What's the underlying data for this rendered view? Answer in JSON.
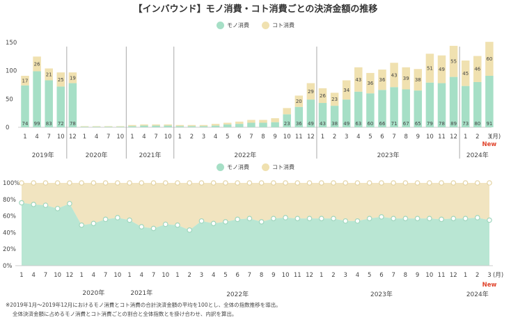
{
  "title": "【インバウンド】モノ消費・コト消費ごとの決済金額の推移",
  "colors": {
    "mono": "#a6dfc6",
    "koto": "#f0e1b0",
    "mono_area": "#b9e6d3",
    "koto_area": "#f1e4c0",
    "axis": "#999999",
    "new": "#e0442c"
  },
  "legend": {
    "mono": "モノ消費",
    "koto": "コト消費"
  },
  "month_unit": "(月)",
  "new_label": "New",
  "note": {
    "line1": "※2019年1月～2019年12月におけるモノ消費とコト消費の合計決済金額の平均を100とし、全体の指数推移を導出。",
    "line2": "全体決済金額に占めるモノ消費とコト消費ごとの割合と全体指数とを掛け合わせ、内訳を算出。"
  },
  "chart_data": [
    {
      "type": "bar",
      "stacked": true,
      "title": "",
      "ylim": [
        0,
        150
      ],
      "yticks": [
        "0",
        "50",
        "100",
        "150"
      ],
      "categories": [
        "1",
        "4",
        "7",
        "10",
        "12",
        "1",
        "4",
        "7",
        "10",
        "1",
        "4",
        "7",
        "10",
        "1",
        "2",
        "3",
        "4",
        "5",
        "6",
        "7",
        "8",
        "9",
        "10",
        "11",
        "12",
        "1",
        "2",
        "3",
        "4",
        "5",
        "6",
        "7",
        "8",
        "9",
        "10",
        "11",
        "12",
        "1",
        "2",
        "3"
      ],
      "year_groups": [
        {
          "label": "2019年",
          "start": 0,
          "end": 3
        },
        {
          "label": "2020年",
          "start": 4,
          "end": 8
        },
        {
          "label": "2021年",
          "start": 9,
          "end": 12
        },
        {
          "label": "2022年",
          "start": 13,
          "end": 24
        },
        {
          "label": "2023年",
          "start": 25,
          "end": 36
        },
        {
          "label": "2024年",
          "start": 37,
          "end": 39
        }
      ],
      "separators_after": [
        3,
        8,
        12,
        24,
        36
      ],
      "series": [
        {
          "name": "モノ消費",
          "values": [
            74,
            99,
            83,
            72,
            78,
            1,
            1,
            1,
            1,
            2,
            3,
            3,
            3,
            2,
            2,
            2,
            3,
            5,
            6,
            8,
            8,
            9,
            23,
            36,
            49,
            43,
            38,
            49,
            63,
            60,
            66,
            71,
            67,
            65,
            79,
            78,
            89,
            73,
            80,
            91
          ],
          "labels": [
            "74",
            "99",
            "83",
            "72",
            "78",
            "",
            "",
            "",
            "",
            "",
            "",
            "",
            "",
            "",
            "",
            "",
            "",
            "",
            "",
            "",
            "",
            "",
            "23",
            "36",
            "49",
            "43",
            "38",
            "49",
            "63",
            "60",
            "66",
            "71",
            "67",
            "65",
            "79",
            "78",
            "89",
            "73",
            "80",
            "91"
          ]
        },
        {
          "name": "コト消費",
          "values": [
            17,
            26,
            21,
            25,
            19,
            1,
            1,
            1,
            1,
            2,
            2,
            2,
            2,
            2,
            2,
            2,
            3,
            3,
            4,
            5,
            5,
            7,
            11,
            20,
            29,
            26,
            23,
            34,
            43,
            36,
            36,
            43,
            39,
            38,
            51,
            49,
            55,
            45,
            46,
            60
          ],
          "labels": [
            "17",
            "26",
            "21",
            "25",
            "19",
            "",
            "",
            "",
            "",
            "",
            "",
            "",
            "",
            "",
            "",
            "",
            "",
            "",
            "",
            "",
            "",
            "",
            "",
            "20",
            "29",
            "26",
            "23",
            "34",
            "43",
            "36",
            "36",
            "43",
            "39",
            "38",
            "51",
            "49",
            "55",
            "45",
            "46",
            "60"
          ]
        }
      ]
    },
    {
      "type": "area",
      "stacked": true,
      "ylim": [
        0,
        100
      ],
      "yticks": [
        "0%",
        "20%",
        "40%",
        "60%",
        "80%",
        "100%"
      ],
      "categories": [
        "1",
        "4",
        "7",
        "10",
        "12",
        "1",
        "4",
        "7",
        "10",
        "1",
        "4",
        "7",
        "10",
        "1",
        "2",
        "3",
        "4",
        "5",
        "6",
        "7",
        "8",
        "9",
        "10",
        "11",
        "12",
        "1",
        "2",
        "3",
        "4",
        "5",
        "6",
        "7",
        "8",
        "9",
        "10",
        "11",
        "12",
        "1",
        "2",
        "3"
      ],
      "year_labels": [
        {
          "label": "2020年",
          "index": 6
        },
        {
          "label": "2021年",
          "index": 10
        },
        {
          "label": "2022年",
          "index": 18
        },
        {
          "label": "2023年",
          "index": 30
        },
        {
          "label": "2024年",
          "index": 38
        }
      ],
      "series": [
        {
          "name": "モノ消費",
          "values": [
            76,
            74,
            73,
            69,
            75,
            49,
            51,
            56,
            58,
            55,
            47,
            45,
            50,
            49,
            43,
            54,
            51,
            53,
            56,
            57,
            53,
            57,
            58,
            57,
            57,
            57,
            57,
            54,
            54,
            57,
            59,
            57,
            57,
            57,
            57,
            56,
            57,
            57,
            58,
            55
          ]
        },
        {
          "name": "コト消費",
          "values": [
            24,
            26,
            27,
            31,
            25,
            51,
            49,
            44,
            42,
            45,
            53,
            55,
            50,
            51,
            57,
            46,
            49,
            47,
            44,
            43,
            47,
            43,
            42,
            43,
            43,
            43,
            43,
            46,
            46,
            43,
            41,
            43,
            43,
            43,
            43,
            44,
            43,
            43,
            42,
            45
          ]
        }
      ]
    }
  ]
}
